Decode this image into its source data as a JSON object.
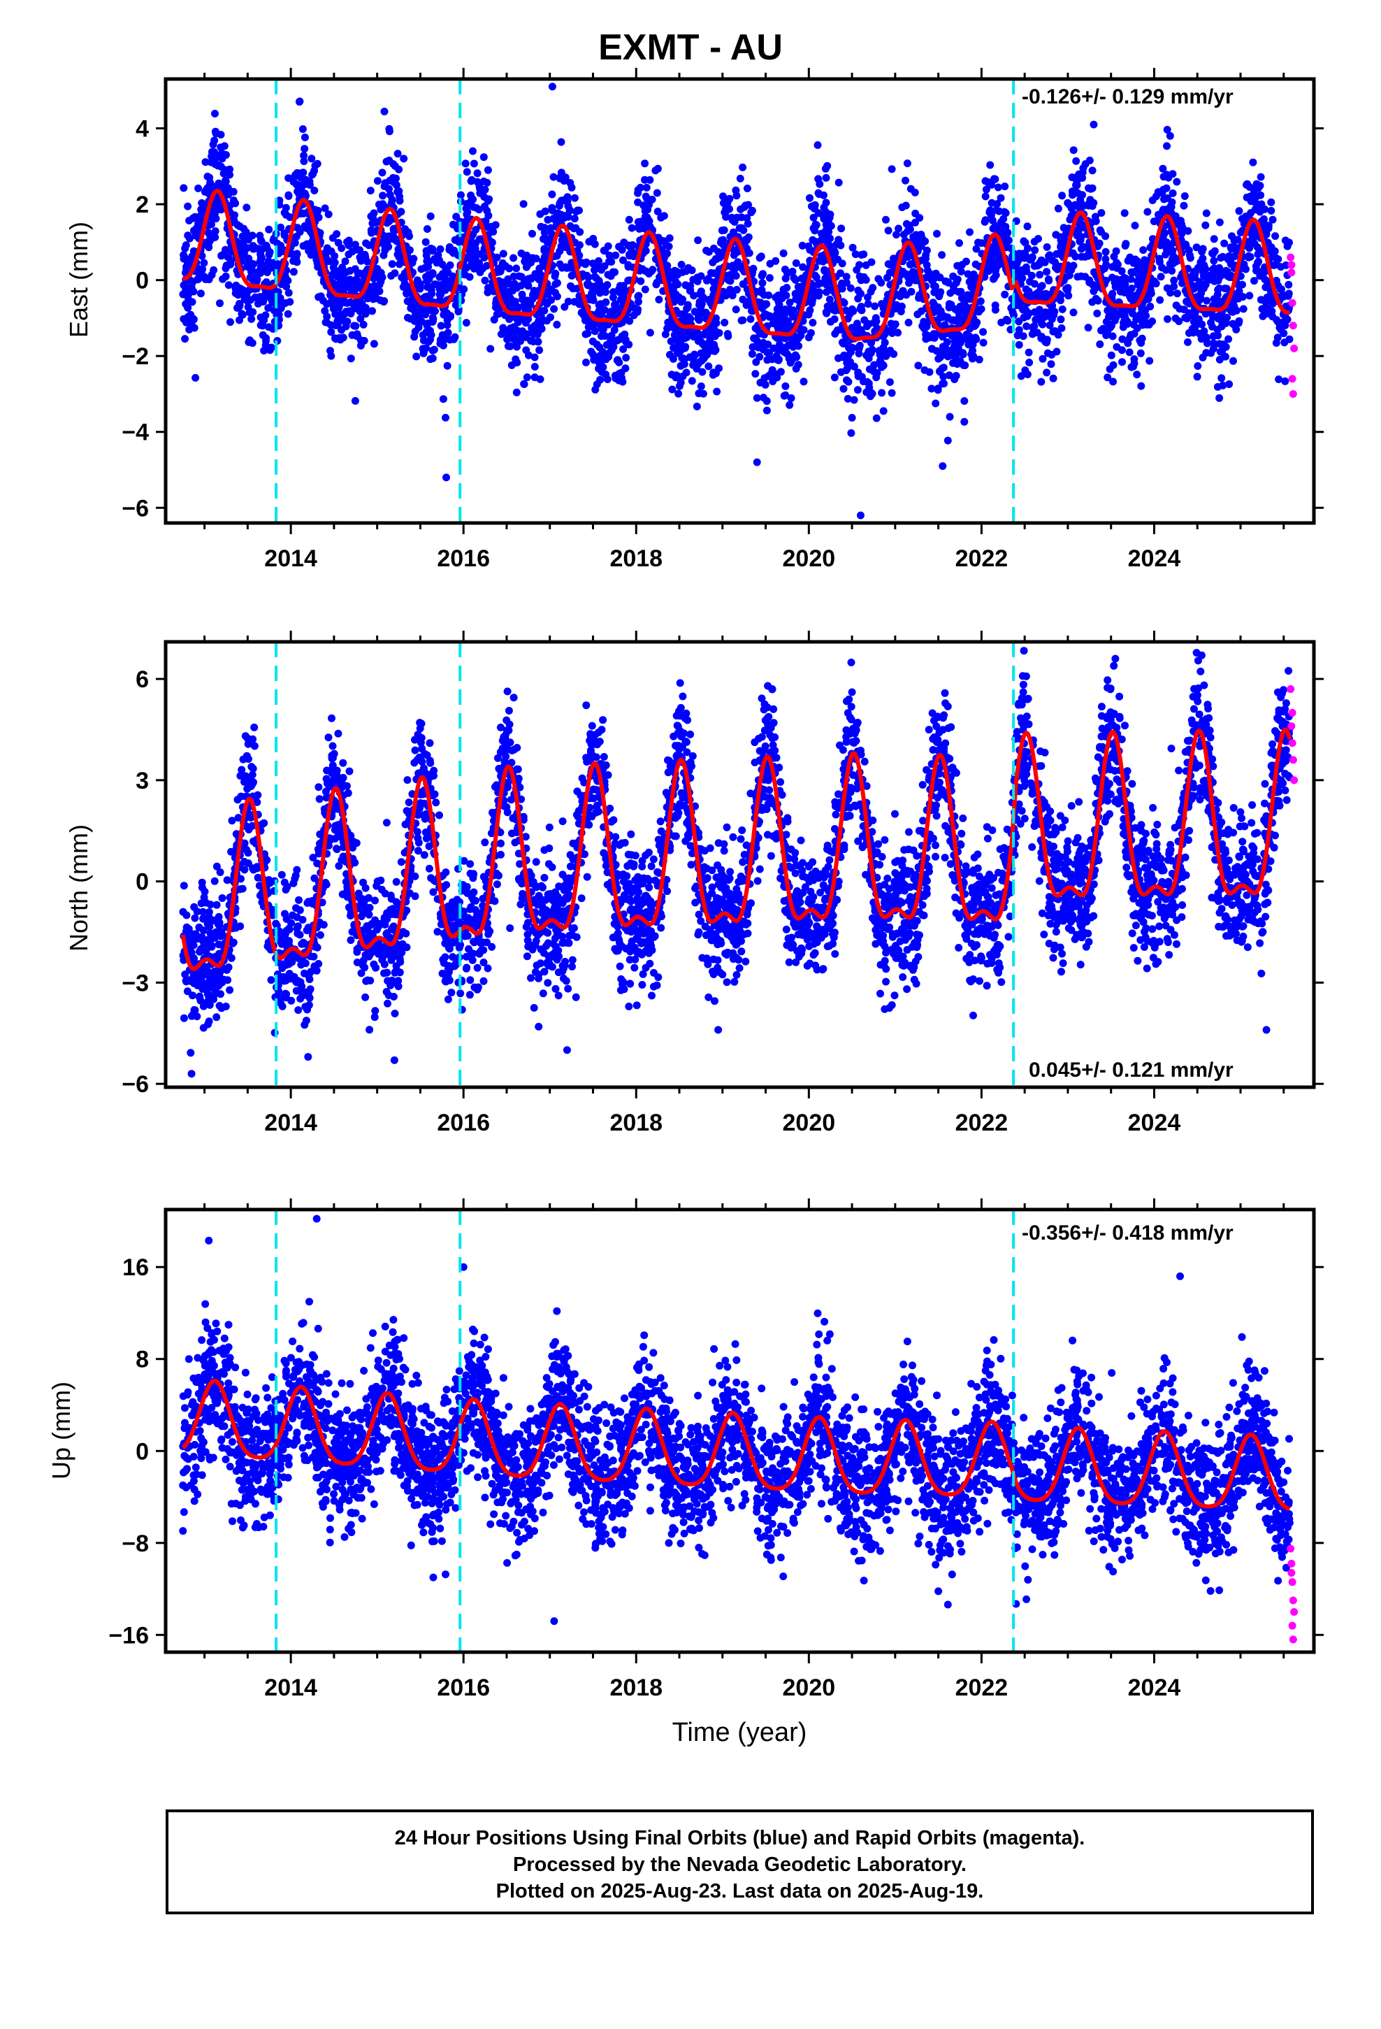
{
  "title": "EXMT - AU",
  "footer": {
    "line1": "24 Hour Positions Using Final Orbits (blue) and Rapid Orbits (magenta).",
    "line2": "Processed by the Nevada Geodetic Laboratory.",
    "line3": "Plotted on 2025-Aug-23. Last data on 2025-Aug-19."
  },
  "colors": {
    "final_orbits": "#0000ff",
    "rapid_orbits": "#ff00ff",
    "model_fit": "#ff0000",
    "equipment_change": "#00e5ee"
  },
  "chart_data": [
    {
      "type": "scatter",
      "ylabel": "East (mm)",
      "xlim": [
        2012.55,
        2025.85
      ],
      "ylim": [
        -6.4,
        5.3
      ],
      "yticks": [
        4,
        2,
        0,
        -2,
        -4,
        -6
      ],
      "xticks": [
        2014,
        2016,
        2018,
        2020,
        2022,
        2024
      ],
      "rate_label": "-0.126+/- 0.129 mm/yr",
      "rate_position": "top-right",
      "equipment_changes": [
        2013.83,
        2015.96,
        2022.37
      ],
      "model": {
        "mean_by_year": [
          [
            2012.75,
            0.9
          ],
          [
            2016.5,
            0.0
          ],
          [
            2020.5,
            -0.7
          ],
          [
            2022.35,
            -0.3
          ],
          [
            2022.4,
            0.3
          ],
          [
            2025.6,
            0.0
          ]
        ],
        "annual_amplitude": 1.2,
        "semiannual_amplitude": 0.35,
        "peak_phase": 0.15
      },
      "final_points": 4400,
      "rapid_points": [
        [
          2025.58,
          0.6
        ],
        [
          2025.59,
          0.2
        ],
        [
          2025.6,
          -0.6
        ],
        [
          2025.61,
          -1.2
        ],
        [
          2025.62,
          -1.8
        ],
        [
          2025.6,
          -2.6
        ],
        [
          2025.61,
          -3.0
        ],
        [
          2025.59,
          0.4
        ]
      ],
      "outliers": [
        [
          2017.03,
          5.1
        ],
        [
          2014.1,
          4.7
        ],
        [
          2020.6,
          -6.2
        ],
        [
          2015.8,
          -5.2
        ],
        [
          2019.4,
          -4.8
        ],
        [
          2021.55,
          -4.9
        ],
        [
          2013.25,
          3.3
        ],
        [
          2023.3,
          4.1
        ]
      ]
    },
    {
      "type": "scatter",
      "ylabel": "North (mm)",
      "xlim": [
        2012.55,
        2025.85
      ],
      "ylim": [
        -6.1,
        7.1
      ],
      "yticks": [
        6,
        3,
        0,
        -3,
        -6
      ],
      "xticks": [
        2014,
        2016,
        2018,
        2020,
        2022,
        2024
      ],
      "rate_label": "0.045+/- 0.121 mm/yr",
      "rate_position": "bottom-right",
      "equipment_changes": [
        2013.83,
        2015.96,
        2022.37
      ],
      "model": {
        "mean_by_year": [
          [
            2012.75,
            -1.0
          ],
          [
            2016.5,
            0.2
          ],
          [
            2020.5,
            0.6
          ],
          [
            2022.35,
            0.5
          ],
          [
            2022.4,
            1.2
          ],
          [
            2025.6,
            1.3
          ]
        ],
        "annual_amplitude": 2.3,
        "semiannual_amplitude": 0.9,
        "peak_phase": 0.52
      },
      "final_points": 4400,
      "rapid_points": [
        [
          2025.58,
          5.7
        ],
        [
          2025.59,
          4.6
        ],
        [
          2025.6,
          4.1
        ],
        [
          2025.61,
          3.6
        ],
        [
          2025.62,
          3.0
        ],
        [
          2025.6,
          5.0
        ]
      ],
      "outliers": [
        [
          2012.85,
          -5.7
        ],
        [
          2024.55,
          6.7
        ],
        [
          2023.55,
          6.6
        ],
        [
          2014.2,
          -5.2
        ],
        [
          2017.2,
          -5.0
        ],
        [
          2015.2,
          -5.3
        ],
        [
          2018.95,
          -4.4
        ],
        [
          2025.3,
          -4.4
        ]
      ]
    },
    {
      "type": "scatter",
      "ylabel": "Up (mm)",
      "xlim": [
        2012.55,
        2025.85
      ],
      "ylim": [
        -17.5,
        21
      ],
      "yticks": [
        16,
        8,
        0,
        -8,
        -16
      ],
      "xticks": [
        2014,
        2016,
        2018,
        2020,
        2022,
        2024
      ],
      "xlabel": "Time (year)",
      "rate_label": "-0.356+/- 0.418 mm/yr",
      "rate_position": "top-right",
      "equipment_changes": [
        2013.83,
        2015.96,
        2022.37
      ],
      "model": {
        "mean_by_year": [
          [
            2012.75,
            2.5
          ],
          [
            2016.5,
            0.5
          ],
          [
            2020.5,
            -1.0
          ],
          [
            2022.35,
            -1.3
          ],
          [
            2022.4,
            -1.6
          ],
          [
            2025.6,
            -2.5
          ]
        ],
        "annual_amplitude": 3.2,
        "semiannual_amplitude": 0.6,
        "peak_phase": 0.12
      },
      "final_points": 4400,
      "rapid_points": [
        [
          2025.58,
          -8.5
        ],
        [
          2025.59,
          -9.8
        ],
        [
          2025.6,
          -11.4
        ],
        [
          2025.61,
          -13.0
        ],
        [
          2025.62,
          -14.0
        ],
        [
          2025.6,
          -15.2
        ],
        [
          2025.61,
          -16.4
        ],
        [
          2025.59,
          -10.6
        ]
      ],
      "outliers": [
        [
          2014.3,
          20.2
        ],
        [
          2013.05,
          18.3
        ],
        [
          2017.05,
          -14.8
        ],
        [
          2016.0,
          16.0
        ],
        [
          2024.3,
          15.2
        ],
        [
          2022.4,
          -13.3
        ],
        [
          2015.65,
          -11.0
        ],
        [
          2021.5,
          -12.2
        ]
      ]
    }
  ]
}
